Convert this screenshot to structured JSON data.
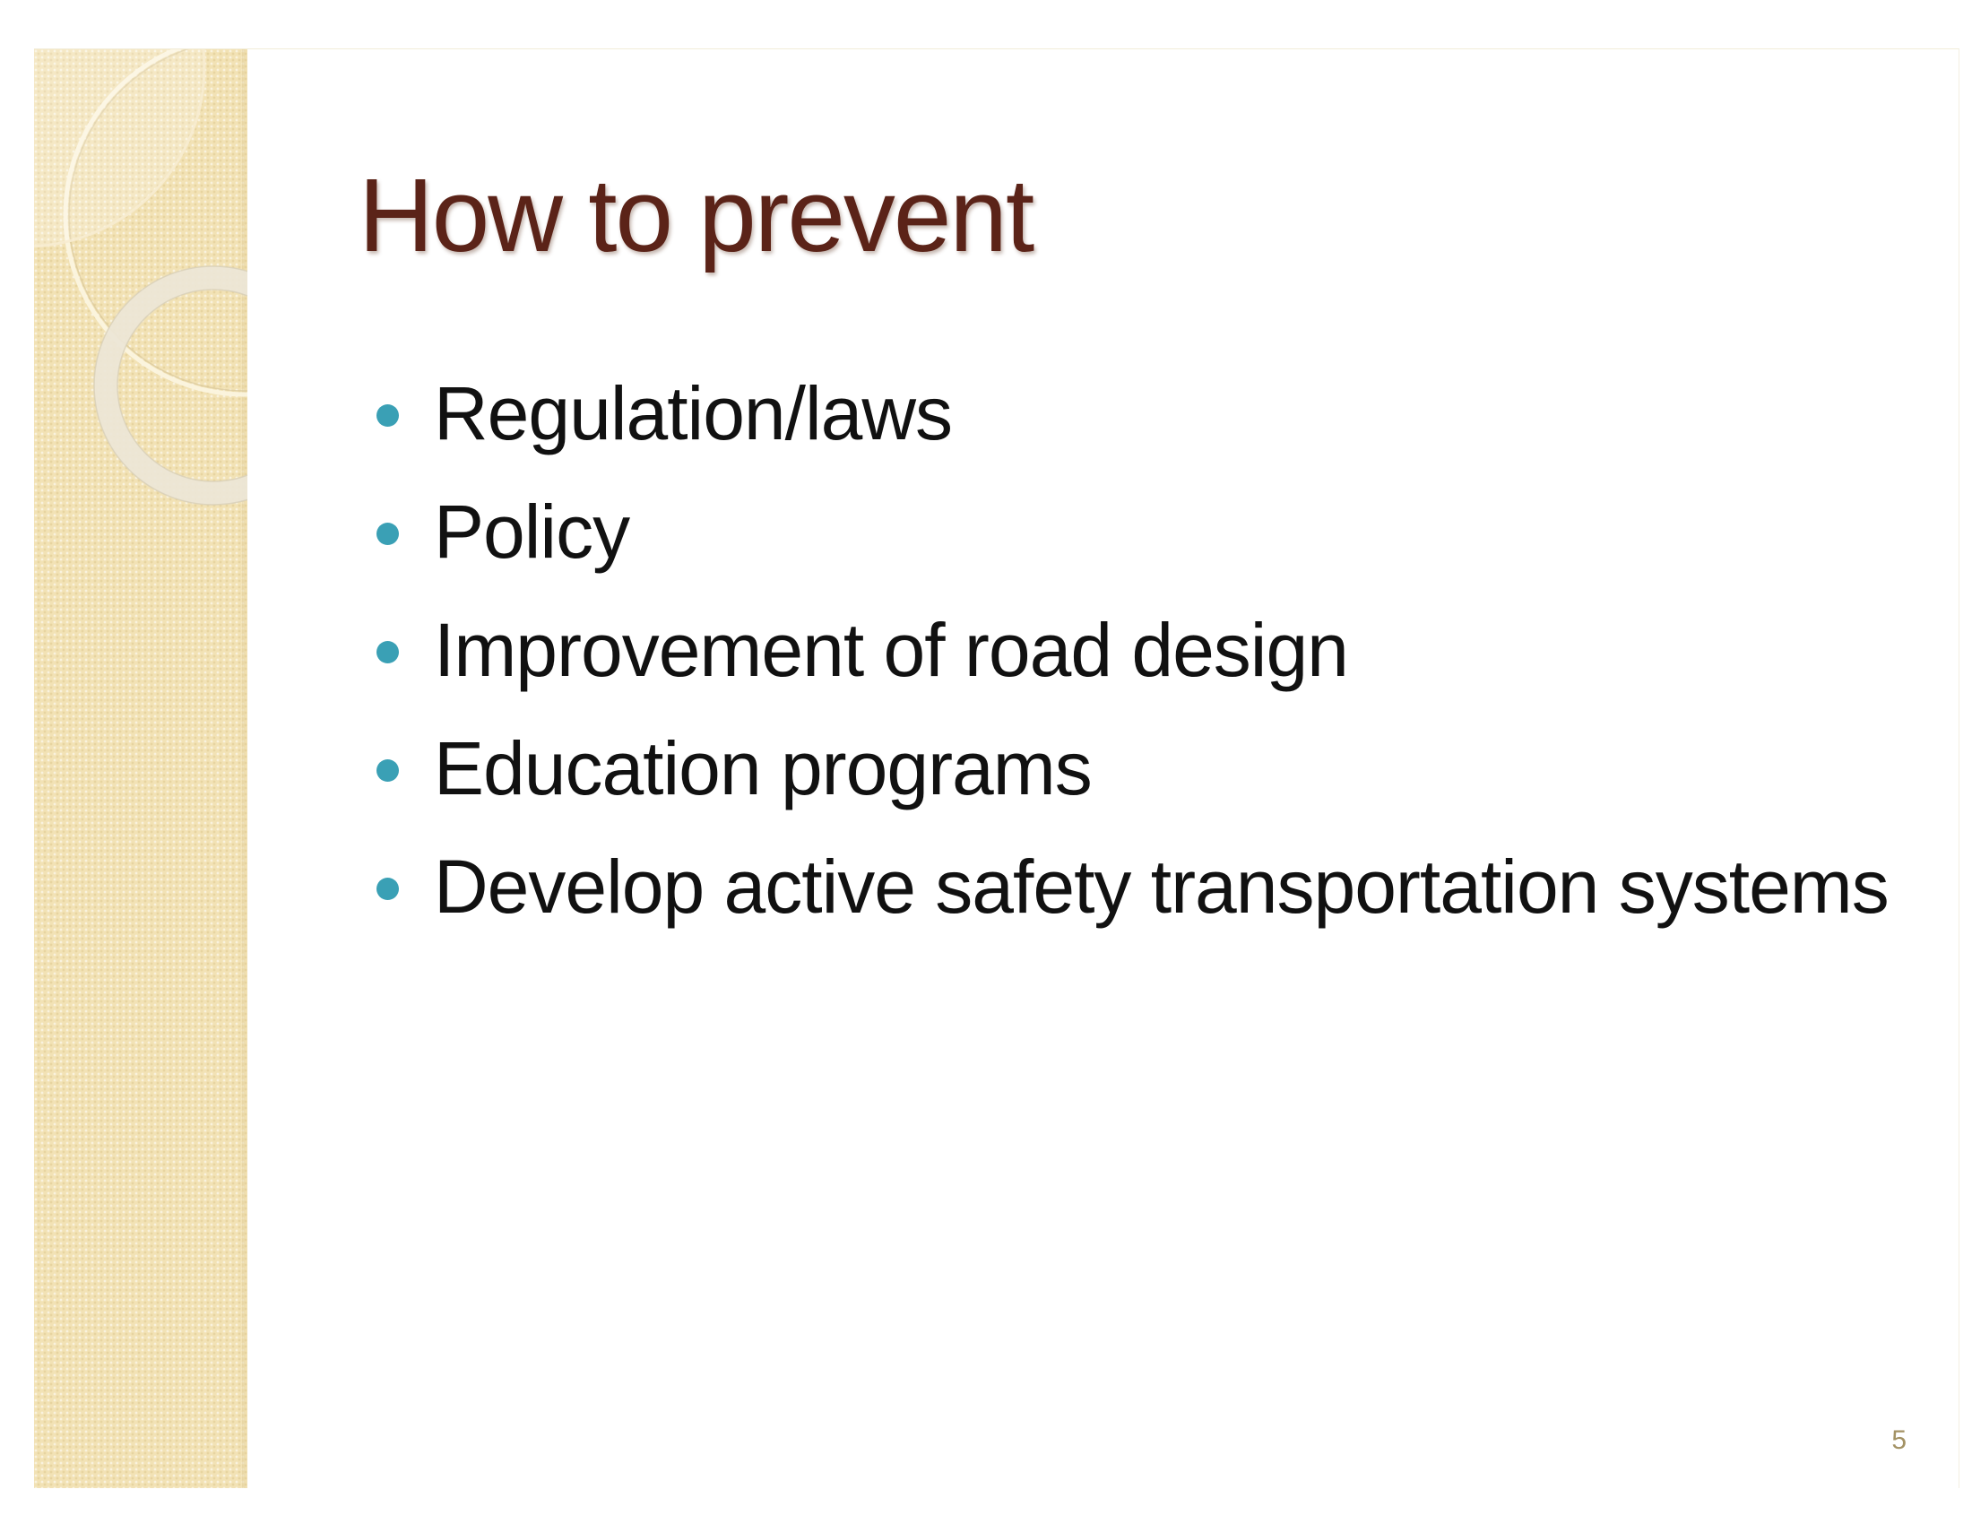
{
  "slide": {
    "title": "How to prevent",
    "bullets": [
      "Regulation/laws",
      "Policy",
      "Improvement of road design",
      "Education programs",
      "Develop active safety transportation systems"
    ],
    "page_number": "5"
  },
  "colors": {
    "title": "#5b2318",
    "bullet": "#3aa0b5",
    "side_band": "#f2e2b5",
    "page_number": "#a39264"
  }
}
